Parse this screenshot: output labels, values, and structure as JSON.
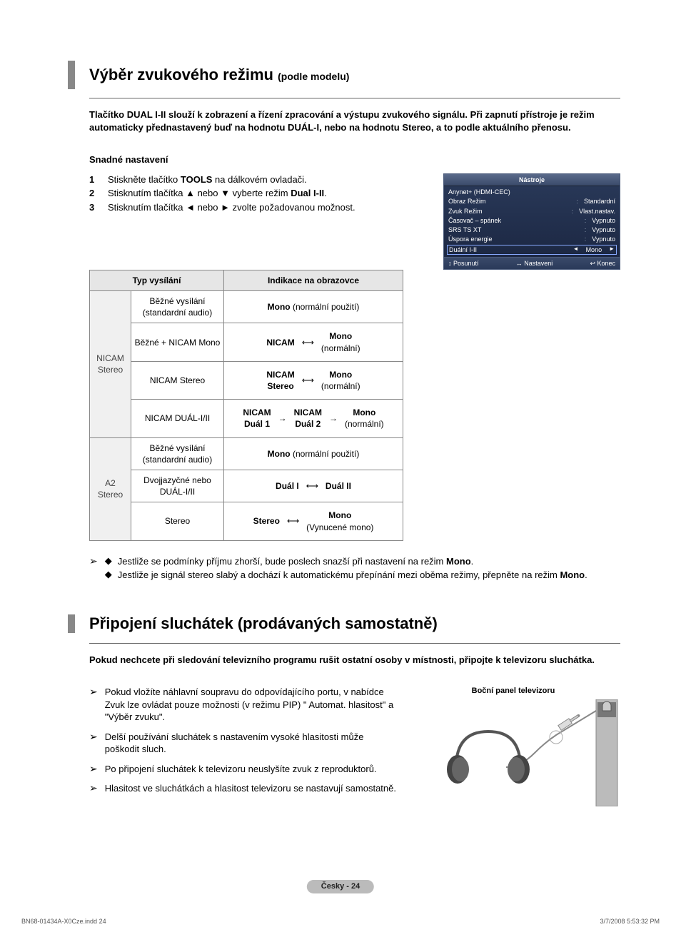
{
  "section1": {
    "title": "Výběr zvukového režimu",
    "title_sub": "(podle modelu)",
    "lead": "Tlačítko DUAL I-II slouží k zobrazení a řízení zpracování a výstupu zvukového signálu. Při zapnutí přístroje je režim automaticky přednastavený buď na hodnotu DUÁL-I, nebo na hodnotu Stereo, a to podle aktuálního přenosu.",
    "sub_head": "Snadné nastavení",
    "steps": [
      {
        "n": "1",
        "t_before": "Stiskněte tlačítko ",
        "bold": "TOOLS",
        "t_after": " na dálkovém ovladači."
      },
      {
        "n": "2",
        "t_before": "Stisknutím tlačítka ▲ nebo ▼ vyberte režim ",
        "bold": "Dual I-II",
        "t_after": "."
      },
      {
        "n": "3",
        "t_before": "Stisknutím tlačítka ◄ nebo ► zvolte požadovanou možnost.",
        "bold": "",
        "t_after": ""
      }
    ]
  },
  "tools_panel": {
    "title": "Nástroje",
    "rows": [
      {
        "label": "Anynet+ (HDMI-CEC)",
        "val": ""
      },
      {
        "label": "Obraz Režim",
        "val": "Standardní"
      },
      {
        "label": "Zvuk Režim",
        "val": "Vlast.nastav."
      },
      {
        "label": "Časovač – spánek",
        "val": "Vypnuto"
      },
      {
        "label": "SRS TS XT",
        "val": "Vypnuto"
      },
      {
        "label": "Úspora energie",
        "val": "Vypnuto"
      }
    ],
    "highlight": {
      "label": "Duální I-II",
      "val": "Mono"
    },
    "footer": [
      {
        "icon": "↕",
        "txt": "Posunutí"
      },
      {
        "icon": "↔",
        "txt": "Nastaveni"
      },
      {
        "icon": "↩",
        "txt": "Konec"
      }
    ]
  },
  "table": {
    "head": [
      "Typ vysílání",
      "Indikace na obrazovce"
    ],
    "group1": {
      "label": "NICAM Stereo",
      "rows": [
        {
          "typ": "Běžné vysílání\n(standardní audio)",
          "ind": {
            "type": "text",
            "val": "Mono",
            "paren": " (normální použití)"
          }
        },
        {
          "typ": "Běžné + NICAM Mono",
          "ind": {
            "type": "flow2",
            "a": "NICAM",
            "b": "Mono",
            "bsub": "(normální)"
          }
        },
        {
          "typ": "NICAM Stereo",
          "ind": {
            "type": "flow2",
            "a": "NICAM",
            "asub": "Stereo",
            "b": "Mono",
            "bsub": "(normální)"
          }
        },
        {
          "typ": "NICAM DUÁL-I/II",
          "ind": {
            "type": "flow3",
            "a": "NICAM",
            "asub": "Duál 1",
            "b": "NICAM",
            "bsub": "Duál 2",
            "c": "Mono",
            "csub": "(normální)"
          }
        }
      ]
    },
    "group2": {
      "label": "A2 Stereo",
      "rows": [
        {
          "typ": "Běžné vysílání\n(standardní audio)",
          "ind": {
            "type": "text",
            "val": "Mono",
            "paren": " (normální použití)"
          }
        },
        {
          "typ": "Dvojjazyčné nebo DUÁL-I/II",
          "ind": {
            "type": "flow2",
            "a": "Duál I",
            "b": "Duál II"
          }
        },
        {
          "typ": "Stereo",
          "ind": {
            "type": "flow2",
            "a": "Stereo",
            "b": "Mono",
            "bsub": "(Vynucené mono)"
          }
        }
      ]
    }
  },
  "notes1": [
    {
      "pre": "Jestliže se podmínky příjmu zhorší, bude poslech snazší při nastavení na režim ",
      "bold": "Mono",
      "post": "."
    },
    {
      "pre": "Jestliže je signál stereo slabý a dochází k automatickému přepínání mezi oběma režimy, přepněte na režim ",
      "bold": "Mono",
      "post": "."
    }
  ],
  "section2": {
    "title": "Připojení sluchátek (prodávaných samostatně)",
    "lead": "Pokud nechcete při sledování televizního programu rušit ostatní osoby v místnosti, připojte k televizoru sluchátka.",
    "notes": [
      "Pokud vložíte náhlavní soupravu do odpovídajícího portu, v nabídce Zvuk lze ovládat pouze možnosti (v režimu PIP) \" Automat. hlasitost\" a \"Výběr zvuku\".",
      "Delší používání sluchátek s nastavením vysoké hlasitosti může poškodit sluch.",
      "Po připojení sluchátek k televizoru neuslyšíte zvuk z reproduktorů.",
      "Hlasitost ve sluchátkách a hlasitost televizoru se nastavují samostatně."
    ],
    "hp_caption": "Boční panel televizoru"
  },
  "footer_pill": "Česky - 24",
  "print": {
    "left": "BN68-01434A-X0Cze.indd   24",
    "right": "3/7/2008   5:53:32 PM"
  }
}
